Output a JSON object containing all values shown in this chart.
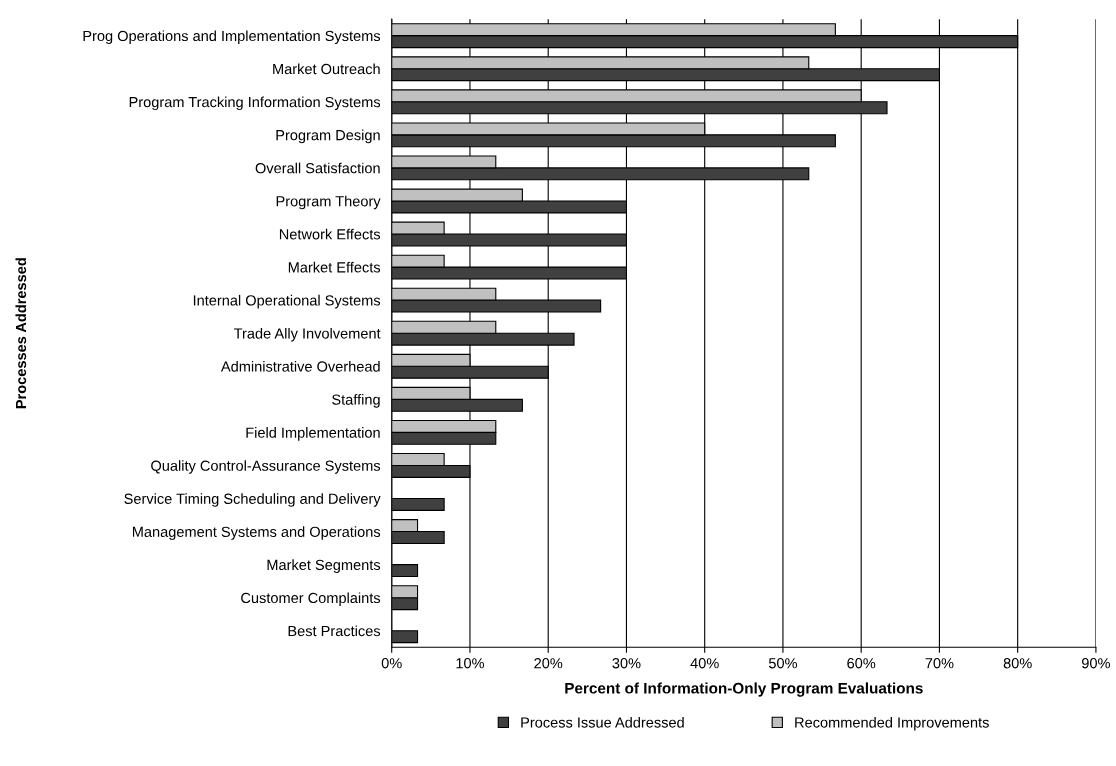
{
  "chart_data": {
    "type": "bar",
    "orientation": "horizontal",
    "xlabel": "Percent of Information-Only Program Evaluations",
    "ylabel": "Processes Addressed",
    "categories": [
      "Prog Operations and Implementation Systems",
      "Market Outreach",
      "Program Tracking Information Systems",
      "Program Design",
      "Overall Satisfaction",
      "Program Theory",
      "Network Effects",
      "Market Effects",
      "Internal Operational Systems",
      "Trade Ally Involvement",
      "Administrative Overhead",
      "Staffing",
      "Field Implementation",
      "Quality Control-Assurance Systems",
      "Service Timing Scheduling and Delivery",
      "Management Systems and Operations",
      "Market Segments",
      "Customer Complaints",
      "Best Practices"
    ],
    "series": [
      {
        "name": "Process Issue Addressed",
        "color": "#404040",
        "values": [
          80,
          70,
          63.3,
          56.7,
          53.3,
          30,
          30,
          30,
          26.7,
          23.3,
          20,
          16.7,
          13.3,
          10,
          6.7,
          6.7,
          3.3,
          3.3,
          3.3
        ]
      },
      {
        "name": "Recommended Improvements",
        "color": "#c0c0c0",
        "values": [
          56.7,
          53.3,
          60,
          40,
          13.3,
          16.7,
          6.7,
          6.7,
          13.3,
          13.3,
          10,
          10,
          13.3,
          6.7,
          null,
          3.3,
          null,
          3.3,
          null
        ]
      }
    ],
    "xlim": [
      0,
      90
    ],
    "xticks": [
      {
        "value": 0,
        "label": "0%"
      },
      {
        "value": 10,
        "label": "10%"
      },
      {
        "value": 20,
        "label": "20%"
      },
      {
        "value": 30,
        "label": "30%"
      },
      {
        "value": 40,
        "label": "40%"
      },
      {
        "value": 50,
        "label": "50%"
      },
      {
        "value": 60,
        "label": "60%"
      },
      {
        "value": 70,
        "label": "70%"
      },
      {
        "value": 80,
        "label": "80%"
      },
      {
        "value": 90,
        "label": "90%"
      }
    ],
    "grid": "x",
    "legend": "bottom"
  }
}
